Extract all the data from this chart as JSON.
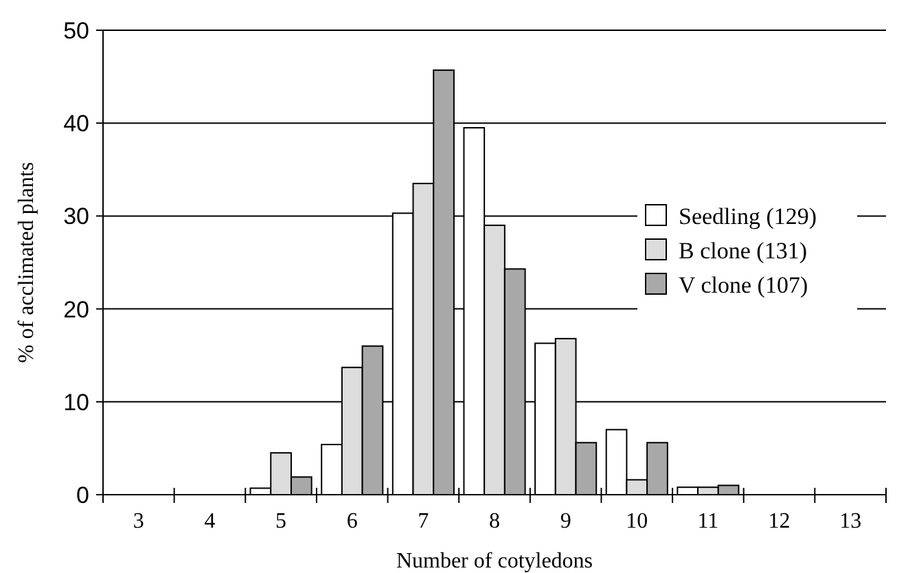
{
  "chart_data": {
    "type": "bar",
    "xlabel": "Number of cotyledons",
    "ylabel": "% of acclimated plants",
    "categories": [
      "3",
      "4",
      "5",
      "6",
      "7",
      "8",
      "9",
      "10",
      "11",
      "12",
      "13"
    ],
    "series": [
      {
        "name": "Seedling (129)",
        "color": "#ffffff",
        "values": [
          0,
          0,
          0.7,
          5.4,
          30.3,
          39.5,
          16.3,
          7.0,
          0.8,
          0,
          0
        ]
      },
      {
        "name": "B clone (131)",
        "color": "#dcdcdc",
        "values": [
          0,
          0,
          4.5,
          13.7,
          33.5,
          29.0,
          16.8,
          1.6,
          0.8,
          0,
          0
        ]
      },
      {
        "name": "V clone (107)",
        "color": "#a8a8a8",
        "values": [
          0,
          0,
          1.9,
          16.0,
          45.7,
          24.3,
          5.6,
          5.6,
          1.0,
          0,
          0
        ]
      }
    ],
    "ylim": [
      0,
      50
    ],
    "yticks": [
      0,
      10,
      20,
      30,
      40,
      50
    ],
    "grid": "y",
    "legend": "right"
  }
}
